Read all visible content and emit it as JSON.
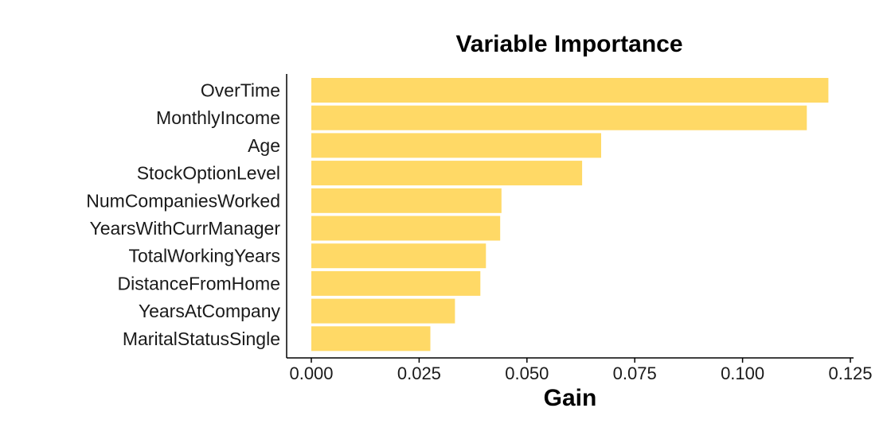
{
  "chart_data": {
    "type": "bar",
    "orientation": "horizontal",
    "title": "Variable Importance",
    "xlabel": "Gain",
    "ylabel": "",
    "categories": [
      "OverTime",
      "MonthlyIncome",
      "Age",
      "StockOptionLevel",
      "NumCompaniesWorked",
      "YearsWithCurrManager",
      "TotalWorkingYears",
      "DistanceFromHome",
      "YearsAtCompany",
      "MaritalStatusSingle"
    ],
    "values": [
      0.1199,
      0.1149,
      0.0672,
      0.0628,
      0.0441,
      0.0438,
      0.0405,
      0.0392,
      0.0333,
      0.0276
    ],
    "xlim": [
      0,
      0.125
    ],
    "xticks": [
      "0.000",
      "0.025",
      "0.050",
      "0.075",
      "0.100",
      "0.125"
    ],
    "xtick_values": [
      0,
      0.025,
      0.05,
      0.075,
      0.1,
      0.125
    ],
    "bar_color": "#FFD966",
    "grid": false,
    "legend": "none"
  }
}
